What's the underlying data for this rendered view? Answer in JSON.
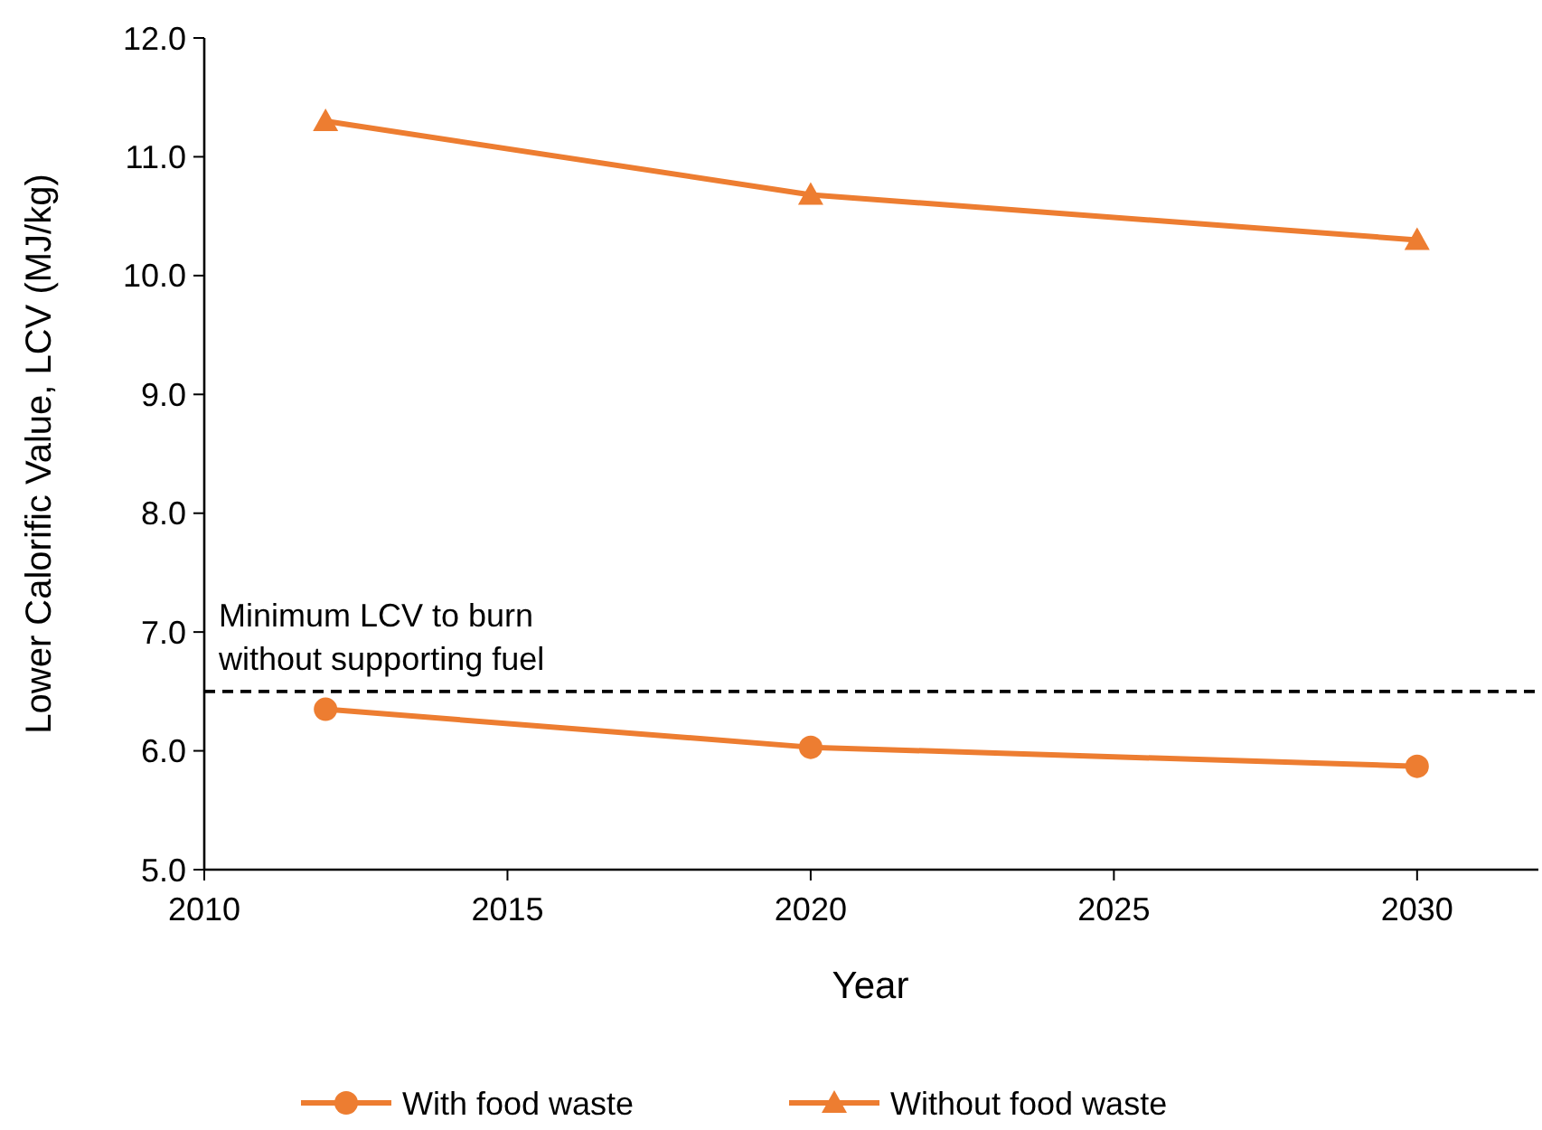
{
  "chart_data": {
    "type": "line",
    "xlabel": "Year",
    "ylabel": "Lower Calorific Value, LCV (MJ/kg)",
    "x": [
      2012,
      2020,
      2030
    ],
    "series": [
      {
        "name": "With food waste",
        "color": "#ed7d31",
        "values": [
          6.35,
          6.03,
          5.87
        ],
        "marker": "circle"
      },
      {
        "name": "Without food waste",
        "color": "#ed7d31",
        "values": [
          11.3,
          10.68,
          10.3
        ],
        "marker": "triangle"
      }
    ],
    "xlim": [
      2010,
      2032
    ],
    "xticks": [
      2010,
      2015,
      2020,
      2025,
      2030
    ],
    "ylim": [
      5,
      12
    ],
    "yticks": [
      {
        "value": 5,
        "label": "5.0"
      },
      {
        "value": 6,
        "label": "6.0"
      },
      {
        "value": 7,
        "label": "7.0"
      },
      {
        "value": 8,
        "label": "8.0"
      },
      {
        "value": 9,
        "label": "9.0"
      },
      {
        "value": 10,
        "label": "10.0"
      },
      {
        "value": 11,
        "label": "11.0"
      },
      {
        "value": 12,
        "label": "12.0"
      }
    ],
    "ref_lines": [
      {
        "axis": "y",
        "value": 6.5,
        "label": "Minimum LCV to burn\nwithout supporting fuel",
        "color": "#000000",
        "line_style": "dashed"
      }
    ],
    "grid": false,
    "legend": "bottom",
    "line_style": "solid"
  }
}
